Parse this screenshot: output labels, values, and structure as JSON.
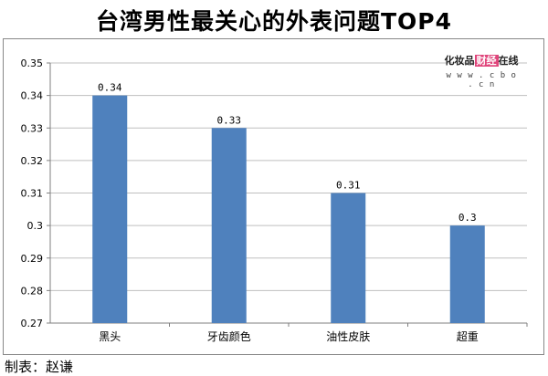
{
  "chart_data": {
    "type": "bar",
    "title": "台湾男性最关心的外表问题TOP4",
    "categories": [
      "黑头",
      "牙齿颜色",
      "油性皮肤",
      "超重"
    ],
    "values": [
      0.34,
      0.33,
      0.31,
      0.3
    ],
    "data_labels": [
      "0.34",
      "0.33",
      "0.31",
      "0.3"
    ],
    "ylim": [
      0.27,
      0.35
    ],
    "yticks": [
      "0.27",
      "0.28",
      "0.29",
      "0.3",
      "0.31",
      "0.32",
      "0.33",
      "0.34",
      "0.35"
    ],
    "grid": true,
    "bar_color": "#4f81bd"
  },
  "credit": "制表：赵谦",
  "watermark": {
    "prefix": "化妆品",
    "highlight": "财经",
    "suffix": "在线",
    "url": "w w w . c b o . c n",
    "highlight_color": "#e0457b"
  }
}
